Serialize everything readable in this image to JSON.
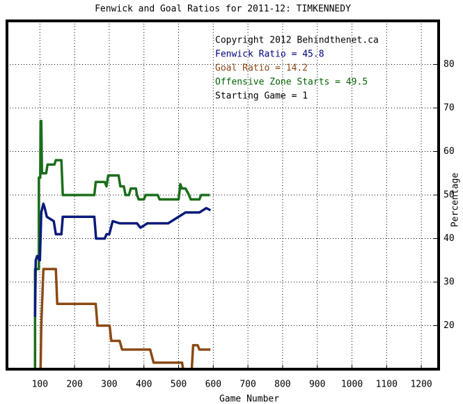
{
  "chart_data": {
    "type": "line",
    "title": "Fenwick and Goal Ratios for 2011-12: TIMKENNEDY",
    "x_label": "Game Number",
    "y_label": "Percentage",
    "annotations": [
      {
        "text": "Copyright 2012 Behindthenet.ca",
        "color": "#000000"
      },
      {
        "text": "Fenwick Ratio = 45.8",
        "color": "#000080"
      },
      {
        "text": "Goal Ratio = 14.2",
        "color": "#8b4513"
      },
      {
        "text": "Offensive Zone Starts = 49.5",
        "color": "#006400"
      },
      {
        "text": "Starting Game = 1",
        "color": "#000000"
      }
    ],
    "xlim": [
      5,
      1250
    ],
    "ylim": [
      10,
      90
    ],
    "xticks": [
      100,
      200,
      300,
      400,
      500,
      600,
      700,
      800,
      900,
      1000,
      1100,
      1200
    ],
    "yticks": [
      20,
      30,
      40,
      50,
      60,
      70,
      80
    ],
    "grid": true,
    "series": [
      {
        "color": "#1b6e1b",
        "x": [
          86,
          86,
          97,
          97,
          101,
          102,
          104,
          106,
          118,
          122,
          142,
          146,
          162,
          166,
          257,
          261,
          287,
          292,
          297,
          327,
          332,
          342,
          347,
          357,
          362,
          377,
          380,
          385,
          400,
          405,
          440,
          445,
          480,
          500,
          505,
          510,
          520,
          530,
          535,
          545,
          560,
          565,
          590
        ],
        "values": [
          10,
          33,
          33,
          54,
          54,
          67,
          67,
          55,
          55,
          57,
          57,
          58,
          58,
          50,
          50,
          53,
          53,
          52,
          54.5,
          54.5,
          52,
          52,
          50,
          50,
          51.5,
          51.5,
          50,
          49,
          49,
          50,
          50,
          49,
          49,
          49,
          52.5,
          51.5,
          51.5,
          50,
          49,
          49,
          49,
          50,
          50
        ]
      },
      {
        "color": "#0a1a7a",
        "x": [
          86,
          88,
          92,
          100,
          104,
          110,
          114,
          120,
          140,
          146,
          162,
          166,
          257,
          262,
          287,
          292,
          300,
          310,
          330,
          380,
          390,
          400,
          410,
          470,
          480,
          500,
          520,
          560,
          580,
          592
        ],
        "values": [
          22,
          35,
          36,
          35,
          46,
          48,
          47,
          45,
          44,
          41,
          41,
          45,
          45,
          40,
          40,
          41,
          41,
          44,
          43.5,
          43.5,
          42.5,
          43,
          43.5,
          43.5,
          44,
          45,
          46,
          46,
          47,
          46.5
        ]
      },
      {
        "color": "#8b4a14",
        "x": [
          102,
          104,
          110,
          146,
          150,
          261,
          266,
          301,
          306,
          330,
          337,
          418,
          428,
          510,
          513,
          538,
          542,
          555,
          560,
          592
        ],
        "values": [
          10,
          20,
          33,
          33,
          25,
          25,
          20,
          20,
          16.5,
          16.5,
          14.5,
          14.5,
          11.5,
          11.5,
          10,
          10,
          15.5,
          15.5,
          14.5,
          14.5
        ]
      }
    ]
  }
}
